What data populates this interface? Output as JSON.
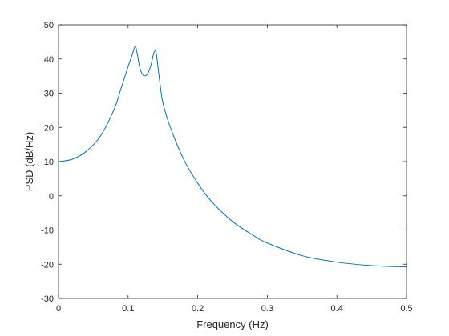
{
  "chart_data": {
    "type": "line",
    "title": "",
    "xlabel": "Frequency (Hz)",
    "ylabel": "PSD (dB/Hz)",
    "xlim": [
      0,
      0.5
    ],
    "ylim": [
      -30,
      50
    ],
    "xticks": [
      0,
      0.1,
      0.2,
      0.3,
      0.4,
      0.5
    ],
    "xtick_labels": [
      "0",
      "0.1",
      "0.2",
      "0.3",
      "0.4",
      "0.5"
    ],
    "yticks": [
      -30,
      -20,
      -10,
      0,
      10,
      20,
      30,
      40,
      50
    ],
    "ytick_labels": [
      "-30",
      "-20",
      "-10",
      "0",
      "10",
      "20",
      "30",
      "40",
      "50"
    ],
    "grid": false,
    "box": true,
    "series": [
      {
        "color": "#0072bd",
        "x": [
          0,
          0.02,
          0.04,
          0.06,
          0.08,
          0.09,
          0.1,
          0.105,
          0.11,
          0.113,
          0.116,
          0.12,
          0.125,
          0.13,
          0.134,
          0.137,
          0.14,
          0.143,
          0.146,
          0.15,
          0.16,
          0.18,
          0.2,
          0.22,
          0.25,
          0.28,
          0.3,
          0.35,
          0.4,
          0.45,
          0.5
        ],
        "y": [
          10,
          10.7,
          13,
          17.4,
          25.3,
          31.5,
          37.8,
          40.7,
          43.6,
          41.7,
          38.2,
          35.7,
          35.1,
          36.5,
          39.2,
          41.8,
          42.1,
          37.5,
          32.5,
          27.2,
          20.4,
          10.6,
          3.7,
          -1.7,
          -7.5,
          -11.6,
          -13.8,
          -17.5,
          -19.4,
          -20.4,
          -20.8
        ]
      }
    ]
  }
}
